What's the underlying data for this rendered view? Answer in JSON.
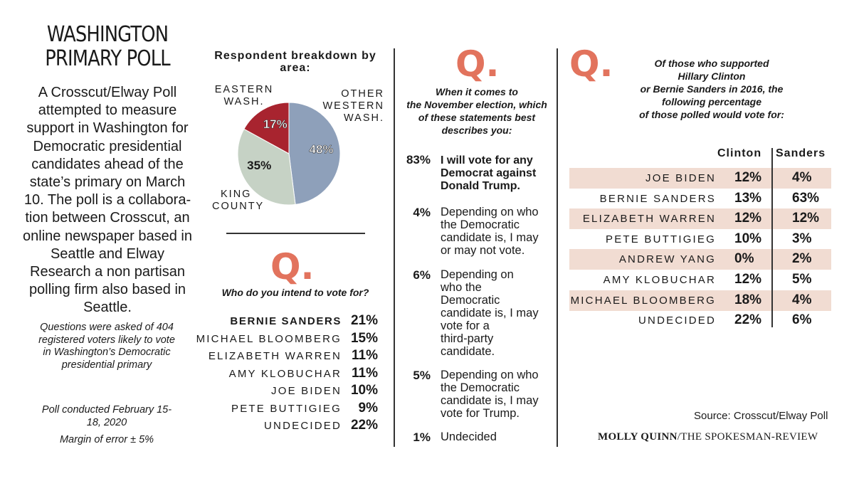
{
  "title_line1": "WASHINGTON",
  "title_line2": "PRIMARY POLL",
  "intro": "A Crosscut/Elway Poll attempted to measure support in Washington for Democratic presidential candidates ahead of the state’s primary on March 10. The poll is a collabora-tion between Crosscut, an online newspaper based in Seattle and Elway Research a non partisan polling firm also based in Seattle.",
  "note_questions": "Questions were asked of 404 registered voters likely to vote in Washington’s Democratic presidential primary",
  "note_dates": "Poll conducted February 15-18, 2020",
  "note_margin": "Margin of error ± 5%",
  "q_letter": "Q.",
  "chart_data": [
    {
      "type": "pie",
      "title": "Respondent breakdown by area:",
      "slices": [
        {
          "label": "OTHER WESTERN WASH.",
          "value": 48,
          "display": "48%",
          "color": "#8ea0ba"
        },
        {
          "label": "KING COUNTY",
          "value": 35,
          "display": "35%",
          "color": "#c6d2c5"
        },
        {
          "label": "EASTERN WASH.",
          "value": 17,
          "display": "17%",
          "color": "#a8242f"
        }
      ],
      "region_labels": {
        "other_l1": "OTHER",
        "other_l2": "WESTERN",
        "other_l3": "WASH.",
        "king_l1": "KING",
        "king_l2": "COUNTY",
        "east_l1": "EASTERN",
        "east_l2": "WASH."
      }
    },
    {
      "type": "table",
      "question": "Who do you intend to vote for?",
      "rows": [
        {
          "name": "BERNIE SANDERS",
          "value": "21%"
        },
        {
          "name": "MICHAEL BLOOMBERG",
          "value": "15%"
        },
        {
          "name": "ELIZABETH WARREN",
          "value": "11%"
        },
        {
          "name": "AMY KLOBUCHAR",
          "value": "11%"
        },
        {
          "name": "JOE BIDEN",
          "value": "10%"
        },
        {
          "name": "PETE BUTTIGIEG",
          "value": "9%"
        },
        {
          "name": "UNDECIDED",
          "value": "22%"
        }
      ]
    },
    {
      "type": "table",
      "question_l1": "When it comes to",
      "question_l2": "the November election, which",
      "question_l3": "of these statements best",
      "question_l4": "describes you:",
      "statements": [
        {
          "pct": "83%",
          "l1": "I will vote for any",
          "l2": "Democrat against",
          "l3": "Donald Trump."
        },
        {
          "pct": "4%",
          "l1": "Depending on who",
          "l2": "the Democratic",
          "l3": "candidate is, I may",
          "l4": "or may not vote."
        },
        {
          "pct": "6%",
          "l1": "Depending on",
          "l2": "who the",
          "l3": "Democratic",
          "l4": "candidate is, I may",
          "l5": "vote for a",
          "l6": "third-party",
          "l7": "candidate."
        },
        {
          "pct": "5%",
          "l1": "Depending on who",
          "l2": "the Democratic",
          "l3": "candidate is, I may",
          "l4": "vote for Trump."
        },
        {
          "pct": "1%",
          "l1": "Undecided"
        }
      ]
    },
    {
      "type": "table",
      "question_l1": "Of those who supported",
      "question_l2": "Hillary Clinton",
      "question_l3": "or Bernie Sanders in 2016, the",
      "question_l4": "following percentage",
      "question_l5": "of those polled would vote for:",
      "col_clinton": "Clinton",
      "col_sanders": "Sanders",
      "rows": [
        {
          "name": "JOE BIDEN",
          "clinton": "12%",
          "sanders": "4%"
        },
        {
          "name": "BERNIE SANDERS",
          "clinton": "13%",
          "sanders": "63%"
        },
        {
          "name": "ELIZABETH WARREN",
          "clinton": "12%",
          "sanders": "12%"
        },
        {
          "name": "PETE BUTTIGIEG",
          "clinton": "10%",
          "sanders": "3%"
        },
        {
          "name": "ANDREW YANG",
          "clinton": "0%",
          "sanders": "2%"
        },
        {
          "name": "AMY KLOBUCHAR",
          "clinton": "12%",
          "sanders": "5%"
        },
        {
          "name": "MICHAEL BLOOMBERG",
          "clinton": "18%",
          "sanders": "4%"
        },
        {
          "name": "UNDECIDED",
          "clinton": "22%",
          "sanders": "6%"
        }
      ]
    }
  ],
  "source": "Source: Crosscut/Elway Poll",
  "credit_name": "MOLLY QUINN",
  "credit_org": "/THE SPOKESMAN-REVIEW",
  "colors": {
    "accent": "#e2735d",
    "shade": "#f1dcd2"
  }
}
